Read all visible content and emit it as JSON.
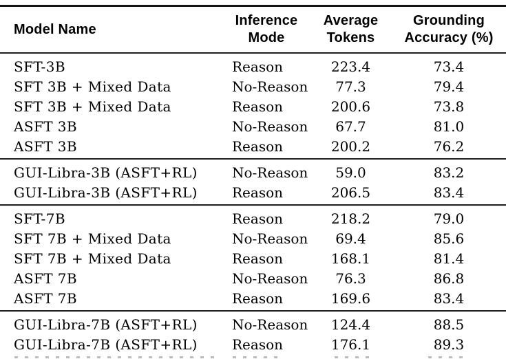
{
  "table": {
    "columns": [
      {
        "label": "Model Name",
        "align": "left"
      },
      {
        "label": "Inference Mode",
        "line1": "Inference",
        "line2": "Mode"
      },
      {
        "label": "Average Tokens",
        "line1": "Average",
        "line2": "Tokens"
      },
      {
        "label": "Grounding Accuracy (%)",
        "line1": "Grounding",
        "line2": "Accuracy (%)"
      }
    ],
    "groups": [
      {
        "rows": [
          {
            "model": "SFT-3B",
            "mode": "Reason",
            "avg_tokens": "223.4",
            "grounding_accuracy": "73.4"
          },
          {
            "model": "SFT 3B + Mixed Data",
            "mode": "No-Reason",
            "avg_tokens": "77.3",
            "grounding_accuracy": "79.4"
          },
          {
            "model": "SFT 3B + Mixed Data",
            "mode": "Reason",
            "avg_tokens": "200.6",
            "grounding_accuracy": "73.8"
          },
          {
            "model": "ASFT 3B",
            "mode": "No-Reason",
            "avg_tokens": "67.7",
            "grounding_accuracy": "81.0"
          },
          {
            "model": "ASFT 3B",
            "mode": "Reason",
            "avg_tokens": "200.2",
            "grounding_accuracy": "76.2"
          }
        ]
      },
      {
        "rows": [
          {
            "model": "GUI-Libra-3B (ASFT+RL)",
            "mode": "No-Reason",
            "avg_tokens": "59.0",
            "grounding_accuracy": "83.2"
          },
          {
            "model": "GUI-Libra-3B (ASFT+RL)",
            "mode": "Reason",
            "avg_tokens": "206.5",
            "grounding_accuracy": "83.4"
          }
        ]
      },
      {
        "rows": [
          {
            "model": "SFT-7B",
            "mode": "Reason",
            "avg_tokens": "218.2",
            "grounding_accuracy": "79.0"
          },
          {
            "model": "SFT 7B + Mixed Data",
            "mode": "No-Reason",
            "avg_tokens": "69.4",
            "grounding_accuracy": "85.6"
          },
          {
            "model": "SFT 7B + Mixed Data",
            "mode": "Reason",
            "avg_tokens": "168.1",
            "grounding_accuracy": "81.4"
          },
          {
            "model": "ASFT 7B",
            "mode": "No-Reason",
            "avg_tokens": "76.3",
            "grounding_accuracy": "86.8"
          },
          {
            "model": "ASFT 7B",
            "mode": "Reason",
            "avg_tokens": "169.6",
            "grounding_accuracy": "83.4"
          }
        ]
      },
      {
        "rows": [
          {
            "model": "GUI-Libra-7B (ASFT+RL)",
            "mode": "No-Reason",
            "avg_tokens": "124.4",
            "grounding_accuracy": "88.5"
          },
          {
            "model": "GUI-Libra-7B (ASFT+RL)",
            "mode": "Reason",
            "avg_tokens": "176.1",
            "grounding_accuracy": "89.3"
          }
        ]
      }
    ],
    "colors": {
      "text": "#000000",
      "rule": "#1c1c1c",
      "background": "#ffffff"
    }
  }
}
